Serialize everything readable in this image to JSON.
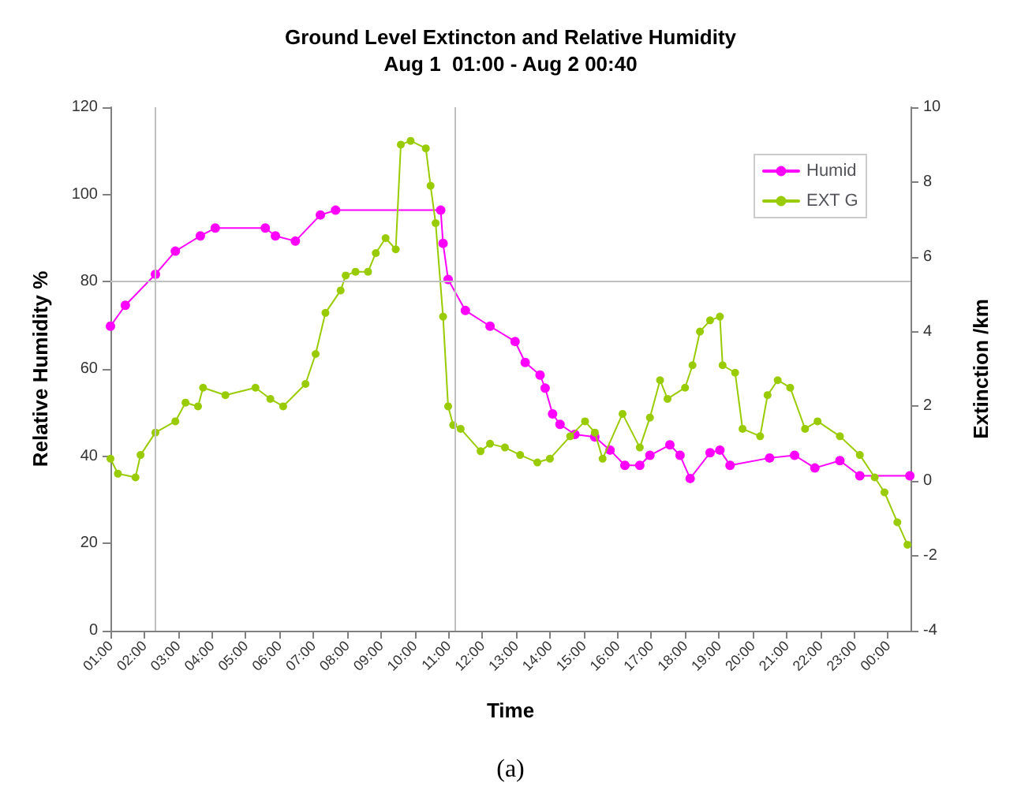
{
  "chart_data": {
    "type": "line",
    "title": "Ground Level Extincton and Relative Humidity",
    "subtitle": "Aug 1  01:00 - Aug 2 00:40",
    "xlabel": "Time",
    "ylabel": "Relative Humidity %",
    "y2label": "Extinction /km",
    "annotations": [
      "(a)"
    ],
    "xlim": [
      1,
      24.67
    ],
    "xticks": [
      {
        "value": 1,
        "label": "01:00"
      },
      {
        "value": 2,
        "label": "02:00"
      },
      {
        "value": 3,
        "label": "03:00"
      },
      {
        "value": 4,
        "label": "04:00"
      },
      {
        "value": 5,
        "label": "05:00"
      },
      {
        "value": 6,
        "label": "06:00"
      },
      {
        "value": 7,
        "label": "07:00"
      },
      {
        "value": 8,
        "label": "08:00"
      },
      {
        "value": 9,
        "label": "09:00"
      },
      {
        "value": 10,
        "label": "10:00"
      },
      {
        "value": 11,
        "label": "11:00"
      },
      {
        "value": 12,
        "label": "12:00"
      },
      {
        "value": 13,
        "label": "13:00"
      },
      {
        "value": 14,
        "label": "14:00"
      },
      {
        "value": 15,
        "label": "15:00"
      },
      {
        "value": 16,
        "label": "16:00"
      },
      {
        "value": 17,
        "label": "17:00"
      },
      {
        "value": 18,
        "label": "18:00"
      },
      {
        "value": 19,
        "label": "19:00"
      },
      {
        "value": 20,
        "label": "20:00"
      },
      {
        "value": 21,
        "label": "21:00"
      },
      {
        "value": 22,
        "label": "22:00"
      },
      {
        "value": 23,
        "label": "23:00"
      },
      {
        "value": 24,
        "label": "00:00"
      }
    ],
    "ylim": [
      0,
      120
    ],
    "yticks": [
      0,
      20,
      40,
      60,
      80,
      100,
      120
    ],
    "y2lim": [
      -4,
      10
    ],
    "y2ticks": [
      -4,
      -2,
      0,
      2,
      4,
      6,
      8,
      10
    ],
    "grid": false,
    "legend": "top right",
    "marker": "circle",
    "line_style": "solid",
    "ref_lines": [
      {
        "axis": "y",
        "value": 80,
        "color": "#c0c0c0"
      },
      {
        "axis": "x",
        "value": 2.33,
        "color": "#c0c0c0"
      },
      {
        "axis": "x",
        "value": 11.17,
        "color": "#c0c0c0"
      }
    ],
    "series": [
      {
        "name": "Humid",
        "color": "#ff00ff",
        "x": [
          1.0,
          1.44,
          2.33,
          2.92,
          3.66,
          4.1,
          5.58,
          5.88,
          6.47,
          7.21,
          7.66,
          10.77,
          10.84,
          10.99,
          11.5,
          12.23,
          12.97,
          13.27,
          13.71,
          13.86,
          14.08,
          14.3,
          14.74,
          15.33,
          15.78,
          16.22,
          16.66,
          16.96,
          17.55,
          17.85,
          18.15,
          18.74,
          19.03,
          19.33,
          20.5,
          21.24,
          21.84,
          22.58,
          23.17,
          24.65
        ],
        "values": [
          69.8,
          74.6,
          81.7,
          87,
          90.5,
          92.3,
          92.3,
          90.5,
          89.3,
          95.3,
          96.4,
          96.4,
          88.8,
          80.5,
          73.4,
          69.8,
          66.3,
          61.5,
          58.6,
          55.6,
          49.7,
          47.3,
          45,
          44.4,
          41.4,
          37.9,
          37.9,
          40.2,
          42.6,
          40.2,
          34.9,
          40.8,
          41.4,
          37.9,
          39.6,
          40.2,
          37.3,
          39,
          35.5,
          35.5
        ]
      },
      {
        "name": "EXT G",
        "color": "#99cc00",
        "axis": "y2",
        "x": [
          1.0,
          1.22,
          1.74,
          1.89,
          2.33,
          2.92,
          3.22,
          3.59,
          3.74,
          4.4,
          5.29,
          5.73,
          6.11,
          6.77,
          7.07,
          7.36,
          7.81,
          7.96,
          8.25,
          8.62,
          8.85,
          9.14,
          9.44,
          9.59,
          9.88,
          10.33,
          10.47,
          10.62,
          10.84,
          10.99,
          11.14,
          11.36,
          11.95,
          12.23,
          12.67,
          13.12,
          13.63,
          14.0,
          14.6,
          15.04,
          15.33,
          15.56,
          16.15,
          16.66,
          16.96,
          17.26,
          17.48,
          18.0,
          18.22,
          18.44,
          18.74,
          19.03,
          19.11,
          19.48,
          19.7,
          20.22,
          20.44,
          20.74,
          21.11,
          21.55,
          21.92,
          22.58,
          23.17,
          23.61,
          23.9,
          24.28,
          24.58
        ],
        "values": [
          0.6,
          0.2,
          0.1,
          0.7,
          1.3,
          1.6,
          2.1,
          2.0,
          2.5,
          2.3,
          2.5,
          2.2,
          2.0,
          2.6,
          3.4,
          4.5,
          5.1,
          5.5,
          5.6,
          5.6,
          6.1,
          6.5,
          6.2,
          9.0,
          9.1,
          8.9,
          7.9,
          6.9,
          4.4,
          2.0,
          1.5,
          1.4,
          0.8,
          1.0,
          0.9,
          0.7,
          0.5,
          0.6,
          1.2,
          1.6,
          1.3,
          0.6,
          1.8,
          0.9,
          1.7,
          2.7,
          2.2,
          2.5,
          3.1,
          4.0,
          4.3,
          4.4,
          3.1,
          2.9,
          1.4,
          1.2,
          2.3,
          2.7,
          2.5,
          1.4,
          1.6,
          1.2,
          0.7,
          0.1,
          -0.3,
          -1.1,
          -1.7
        ]
      }
    ]
  }
}
